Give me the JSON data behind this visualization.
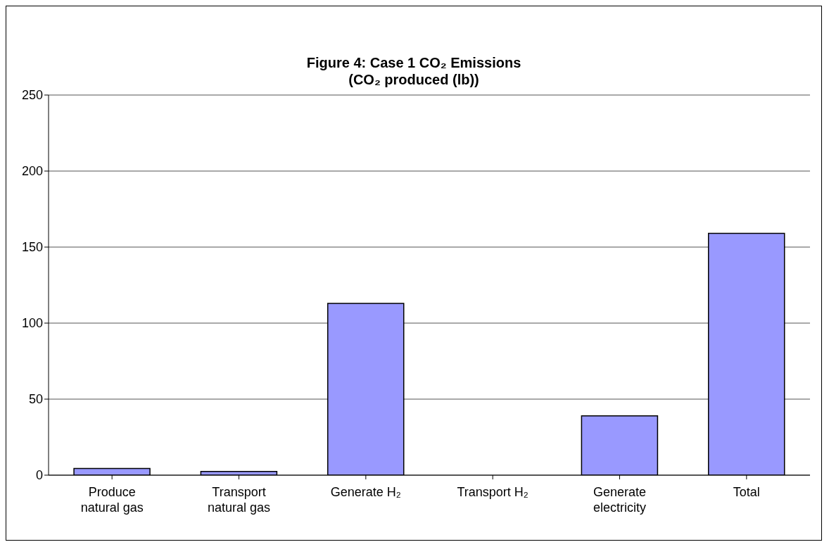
{
  "chart_data": {
    "type": "bar",
    "title": "Figure 4: Case 1 CO₂ Emissions",
    "subtitle": "(CO₂ produced (lb))",
    "categories": [
      "Produce natural gas",
      "Transport natural gas",
      "Generate H₂",
      "Transport H₂",
      "Generate electricity",
      "Total"
    ],
    "values": [
      4.4,
      2.4,
      113,
      0,
      39,
      159
    ],
    "color": "#9999ff",
    "ylim": [
      0,
      250
    ],
    "yticks": [
      0,
      50,
      100,
      150,
      200,
      250
    ],
    "grid": "y"
  }
}
